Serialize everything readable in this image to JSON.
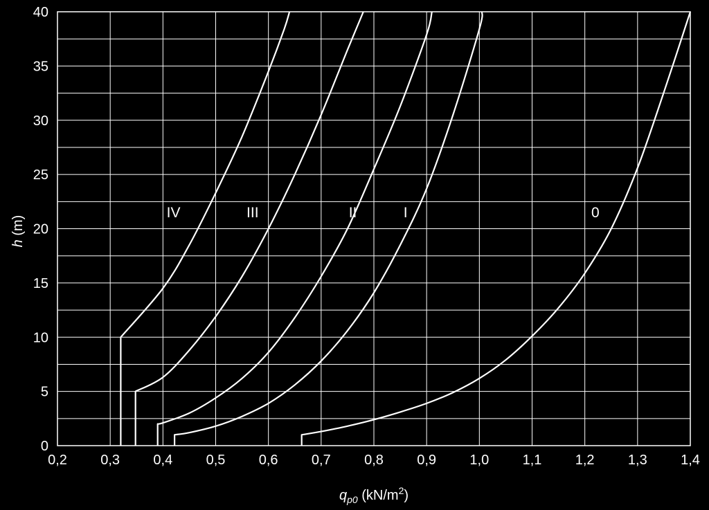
{
  "chart_data": {
    "type": "line",
    "title": "",
    "xlabel": {
      "symbol": "q",
      "subscript": "p0",
      "unit": "(kN/m",
      "unit_sup": "2",
      "unit_end": ")"
    },
    "ylabel": {
      "symbol": "h",
      "unit": "(m)"
    },
    "xlim": [
      0.2,
      1.4
    ],
    "ylim": [
      0,
      40
    ],
    "x_ticks": [
      0.2,
      0.3,
      0.4,
      0.5,
      0.6,
      0.7,
      0.8,
      0.9,
      1.0,
      1.1,
      1.2,
      1.3,
      1.4
    ],
    "x_tick_labels": [
      "0,2",
      "0,3",
      "0,4",
      "0,5",
      "0,6",
      "0,7",
      "0,8",
      "0,9",
      "1,0",
      "1,1",
      "1,2",
      "1,3",
      "1,4"
    ],
    "y_ticks": [
      0,
      5,
      10,
      15,
      20,
      25,
      30,
      35,
      40
    ],
    "y_tick_labels": [
      "0",
      "5",
      "10",
      "15",
      "20",
      "25",
      "30",
      "35",
      "40"
    ],
    "grid": {
      "x_step": 0.1,
      "y_step": 2.5
    },
    "colors": {
      "background": "#000000",
      "grid": "#ffffff",
      "line": "#ffffff"
    },
    "series": [
      {
        "name": "0",
        "label_at": [
          1.22,
          21.5
        ],
        "points": [
          [
            0.663,
            0
          ],
          [
            0.663,
            1
          ],
          [
            0.7,
            1.3
          ],
          [
            0.75,
            1.8
          ],
          [
            0.8,
            2.4
          ],
          [
            0.85,
            3.1
          ],
          [
            0.9,
            3.9
          ],
          [
            0.95,
            4.9
          ],
          [
            1.0,
            6.2
          ],
          [
            1.05,
            7.9
          ],
          [
            1.1,
            10.1
          ],
          [
            1.15,
            12.7
          ],
          [
            1.2,
            15.9
          ],
          [
            1.25,
            20.0
          ],
          [
            1.3,
            25.6
          ],
          [
            1.35,
            32.6
          ],
          [
            1.4,
            40
          ]
        ]
      },
      {
        "name": "I",
        "label_at": [
          0.86,
          21.5
        ],
        "points": [
          [
            0.422,
            0
          ],
          [
            0.422,
            1
          ],
          [
            0.45,
            1.2
          ],
          [
            0.5,
            1.8
          ],
          [
            0.55,
            2.7
          ],
          [
            0.6,
            3.9
          ],
          [
            0.65,
            5.6
          ],
          [
            0.7,
            7.8
          ],
          [
            0.75,
            10.6
          ],
          [
            0.8,
            14.1
          ],
          [
            0.85,
            18.5
          ],
          [
            0.9,
            23.7
          ],
          [
            0.95,
            30.5
          ],
          [
            1.0,
            38.4
          ],
          [
            1.005,
            40
          ]
        ]
      },
      {
        "name": "II",
        "label_at": [
          0.76,
          21.5
        ],
        "points": [
          [
            0.39,
            0
          ],
          [
            0.39,
            2
          ],
          [
            0.4,
            2.1
          ],
          [
            0.45,
            3.0
          ],
          [
            0.5,
            4.4
          ],
          [
            0.55,
            6.2
          ],
          [
            0.6,
            8.6
          ],
          [
            0.65,
            11.8
          ],
          [
            0.7,
            15.6
          ],
          [
            0.75,
            20.0
          ],
          [
            0.8,
            25.5
          ],
          [
            0.85,
            31.3
          ],
          [
            0.9,
            37.9
          ],
          [
            0.91,
            40
          ]
        ]
      },
      {
        "name": "III",
        "label_at": [
          0.57,
          21.5
        ],
        "points": [
          [
            0.348,
            0
          ],
          [
            0.348,
            5
          ],
          [
            0.4,
            6.3
          ],
          [
            0.45,
            8.8
          ],
          [
            0.5,
            11.9
          ],
          [
            0.55,
            15.6
          ],
          [
            0.6,
            20.0
          ],
          [
            0.65,
            25.0
          ],
          [
            0.7,
            30.5
          ],
          [
            0.75,
            36.5
          ],
          [
            0.78,
            40
          ]
        ]
      },
      {
        "name": "IV",
        "label_at": [
          0.42,
          21.5
        ],
        "points": [
          [
            0.32,
            0
          ],
          [
            0.32,
            10
          ],
          [
            0.4,
            14.5
          ],
          [
            0.45,
            18.5
          ],
          [
            0.5,
            23.3
          ],
          [
            0.55,
            28.5
          ],
          [
            0.6,
            34.5
          ],
          [
            0.63,
            38.4
          ],
          [
            0.64,
            40
          ]
        ]
      }
    ]
  }
}
